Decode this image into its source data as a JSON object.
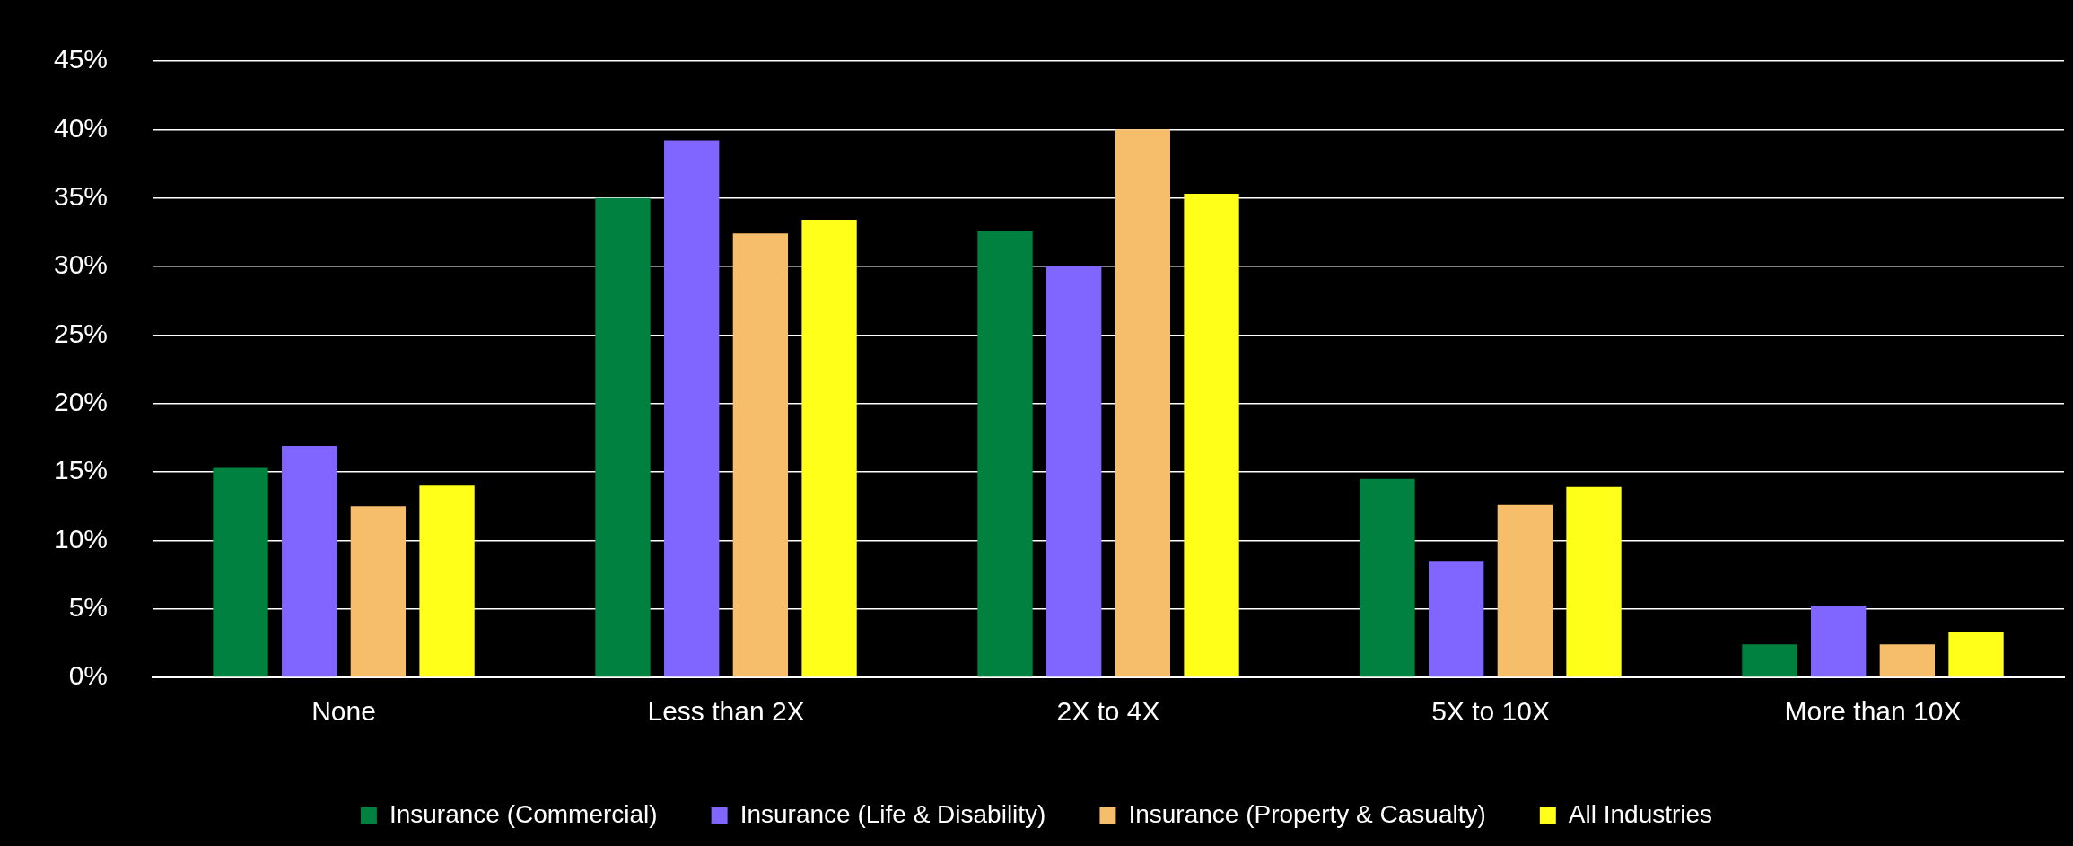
{
  "chart_data": {
    "type": "bar",
    "categories": [
      "None",
      "Less than 2X",
      "2X to 4X",
      "5X to 10X",
      "More than 10X"
    ],
    "series": [
      {
        "name": "Insurance (Commercial)",
        "color": "#00813f",
        "values": [
          15.3,
          35.0,
          32.6,
          14.5,
          2.4
        ]
      },
      {
        "name": "Insurance (Life & Disability)",
        "color": "#8066ff",
        "values": [
          16.9,
          39.2,
          30.0,
          8.5,
          5.2
        ]
      },
      {
        "name": "Insurance (Property & Casualty)",
        "color": "#f6bd6a",
        "values": [
          12.5,
          32.4,
          40.0,
          12.6,
          2.4
        ]
      },
      {
        "name": "All Industries",
        "color": "#ffff1a",
        "values": [
          14.0,
          33.4,
          35.3,
          13.9,
          3.3
        ]
      }
    ],
    "ylim": [
      0,
      45
    ],
    "yticks": [
      {
        "value": 0,
        "label": "0%"
      },
      {
        "value": 5,
        "label": "5%"
      },
      {
        "value": 10,
        "label": "10%"
      },
      {
        "value": 15,
        "label": "15%"
      },
      {
        "value": 20,
        "label": "20%"
      },
      {
        "value": 25,
        "label": "25%"
      },
      {
        "value": 30,
        "label": "30%"
      },
      {
        "value": 35,
        "label": "35%"
      },
      {
        "value": 40,
        "label": "40%"
      },
      {
        "value": 45,
        "label": "45%"
      }
    ],
    "grid": "y",
    "legend": "bottom"
  }
}
